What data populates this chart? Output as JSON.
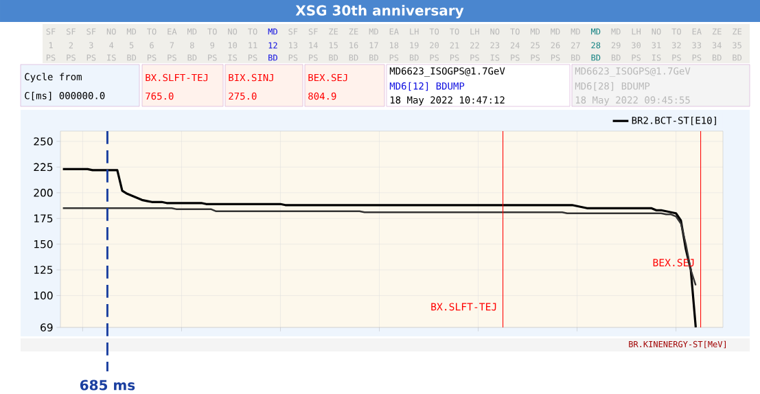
{
  "chart_data": {
    "type": "line",
    "title": "XSG 30th anniversary",
    "categories": [
      null,
      null,
      null,
      null,
      null,
      null,
      null,
      null,
      null,
      null,
      null,
      null,
      null,
      null,
      null,
      null,
      null,
      null,
      null,
      null,
      null,
      null,
      null,
      null,
      null,
      null,
      null,
      null,
      null,
      null,
      null,
      null,
      null,
      null,
      null,
      null,
      null,
      null,
      null,
      null,
      null,
      null,
      null,
      null,
      null,
      null,
      null,
      null,
      null,
      null,
      null,
      null,
      null,
      null,
      null,
      null,
      null,
      null,
      null,
      null,
      null,
      null,
      null,
      null,
      null,
      null,
      null,
      null,
      null,
      null,
      null,
      null,
      null,
      null,
      null,
      null,
      null,
      null,
      null,
      null,
      null,
      null,
      null,
      null,
      null,
      null,
      null,
      null,
      null,
      null,
      null,
      null,
      null,
      null,
      null,
      null,
      null,
      null,
      null,
      null,
      null,
      null,
      null,
      null,
      null,
      null,
      null,
      null,
      null,
      null,
      null,
      null,
      null,
      null,
      null,
      null,
      null,
      null,
      null,
      null,
      null,
      null,
      null,
      null,
      null,
      null,
      null,
      null,
      null,
      null,
      null,
      null,
      null,
      null
    ],
    "ylim": [
      69,
      260
    ],
    "yticks": [
      69,
      100,
      125,
      150,
      175,
      200,
      225,
      250
    ],
    "tick_labels": "y",
    "grid": true,
    "legend": "top right",
    "series": [
      {
        "name": "BR2.BCT-ST[E10]",
        "color": "#000000",
        "values": [
          223,
          223,
          223,
          223,
          223,
          223,
          222,
          222,
          222,
          222,
          222,
          222,
          202,
          199,
          197,
          195,
          193,
          192,
          191,
          191,
          191,
          190,
          190,
          190,
          190,
          190,
          190,
          190,
          190,
          189,
          189,
          189,
          189,
          189,
          189,
          189,
          189,
          189,
          189,
          189,
          189,
          189,
          189,
          189,
          189,
          188,
          188,
          188,
          188,
          188,
          188,
          188,
          188,
          188,
          188,
          188,
          188,
          188,
          188,
          188,
          188,
          188,
          188,
          188,
          188,
          188,
          188,
          188,
          188,
          188,
          188,
          188,
          188,
          188,
          188,
          188,
          188,
          188,
          188,
          188,
          188,
          188,
          188,
          188,
          188,
          188,
          188,
          188,
          188,
          188,
          188,
          188,
          188,
          188,
          188,
          188,
          188,
          188,
          188,
          188,
          188,
          188,
          188,
          188,
          187,
          186,
          185,
          185,
          185,
          185,
          185,
          185,
          185,
          185,
          185,
          185,
          185,
          185,
          185,
          185,
          183,
          183,
          182,
          181,
          180,
          173,
          145,
          125,
          69,
          null,
          null,
          null,
          null,
          null
        ]
      },
      {
        "color": "#333333",
        "values": [
          185,
          185,
          185,
          185,
          185,
          185,
          185,
          185,
          185,
          185,
          185,
          185,
          185,
          185,
          185,
          185,
          185,
          185,
          185,
          185,
          185,
          185,
          185,
          184,
          184,
          184,
          184,
          184,
          184,
          184,
          184,
          182,
          182,
          182,
          182,
          182,
          182,
          182,
          182,
          182,
          182,
          182,
          182,
          182,
          182,
          182,
          182,
          182,
          182,
          182,
          182,
          182,
          182,
          182,
          182,
          182,
          182,
          182,
          182,
          182,
          182,
          181,
          181,
          181,
          181,
          181,
          181,
          181,
          181,
          181,
          181,
          181,
          181,
          181,
          181,
          181,
          181,
          181,
          181,
          181,
          181,
          181,
          181,
          181,
          181,
          181,
          181,
          181,
          181,
          181,
          181,
          181,
          181,
          181,
          181,
          181,
          181,
          181,
          181,
          181,
          181,
          181,
          180,
          180,
          180,
          180,
          180,
          180,
          180,
          180,
          180,
          180,
          180,
          180,
          180,
          180,
          180,
          180,
          180,
          180,
          180,
          180,
          179,
          179,
          177,
          170,
          150,
          125,
          110,
          null,
          null,
          null,
          null,
          null
        ]
      }
    ],
    "annotations": [
      "SF",
      "SF",
      "SF",
      "NO",
      "MD",
      "TO",
      "EA",
      "MD",
      "TO",
      "NO",
      "TO",
      "MD",
      "SF",
      "SF",
      "ZE",
      "ZE",
      "MD",
      "EA",
      "LH",
      "TO",
      "TO",
      "LH",
      "NO",
      "TO",
      "MD",
      "MD",
      "MD",
      "MD",
      "MD",
      "LH",
      "NO",
      "TO",
      "EA",
      "ZE",
      "ZE",
      "1",
      "2",
      "3",
      "4",
      "5",
      "6",
      "7",
      "8",
      "9",
      "10",
      "11",
      "12",
      "13",
      "14",
      "15",
      "16",
      "17",
      "18",
      "19",
      "20",
      "21",
      "22",
      "23",
      "24",
      "25",
      "26",
      "27",
      "28",
      "29",
      "30",
      "31",
      "32",
      "33",
      "34",
      "35",
      "PS",
      "PS",
      "PS",
      "IS",
      "BD",
      "PS",
      "PS",
      "BD",
      "PS",
      "IS",
      "PS",
      "BD",
      "PS",
      "PS",
      "BD",
      "BD",
      "BD",
      "PS",
      "BD",
      "PS",
      "PS",
      "PS",
      "IS",
      "PS",
      "PS",
      "PS",
      "BD",
      "BD",
      "BD",
      "PS",
      "IS",
      "PS",
      "PS",
      "BD",
      "BD",
      "Cycle from",
      "C[ms] 000000.0",
      "BX.SLFT-TEJ",
      "765.0",
      "BIX.SINJ",
      "275.0",
      "BEX.SEJ",
      "804.9",
      "MD6623_ISOGPS@1.7GeV",
      "MD6[12] BDUMP",
      "18 May 2022 10:47:12",
      "MD6623_ISOGPS@1.7GeV",
      "MD6[28] BDUMP",
      "18 May 2022 09:45:55",
      "BR.KINENERGY-ST[MeV]",
      "BX.SLFT-TEJ",
      "BEX.SEJ",
      "685 ms"
    ]
  }
}
